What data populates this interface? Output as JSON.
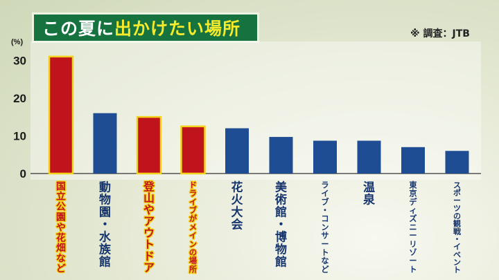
{
  "header": {
    "title_prefix": "この夏に",
    "title_highlight": "出かけたい場所",
    "source": "※ 調査：JTB"
  },
  "colors": {
    "highlight_bar": "#c0141c",
    "highlight_outline": "#f2d21a",
    "normal_bar": "#1f4d93",
    "highlight_text": "#c0141c",
    "normal_text": "#16356e",
    "title_bg": "#16733f"
  },
  "chart_data": {
    "type": "bar",
    "ylabel": "(%)",
    "ylim": [
      0,
      35
    ],
    "yticks": [
      0,
      10,
      20,
      30
    ],
    "grid": false,
    "categories": [
      "国立公園や花畑など",
      "動物園・水族館",
      "登山やアウトドア",
      "ドライブがメインの場所",
      "花火大会",
      "美術館・博物館",
      "ライブ・コンサートなど",
      "温泉",
      "東京ディズニーリゾート",
      "スポーツの観戦・イベント"
    ],
    "values": [
      31,
      16,
      15,
      12.5,
      12,
      9.7,
      8.7,
      8.7,
      7,
      6
    ],
    "highlighted": [
      true,
      false,
      true,
      true,
      false,
      false,
      false,
      false,
      false,
      false
    ]
  }
}
